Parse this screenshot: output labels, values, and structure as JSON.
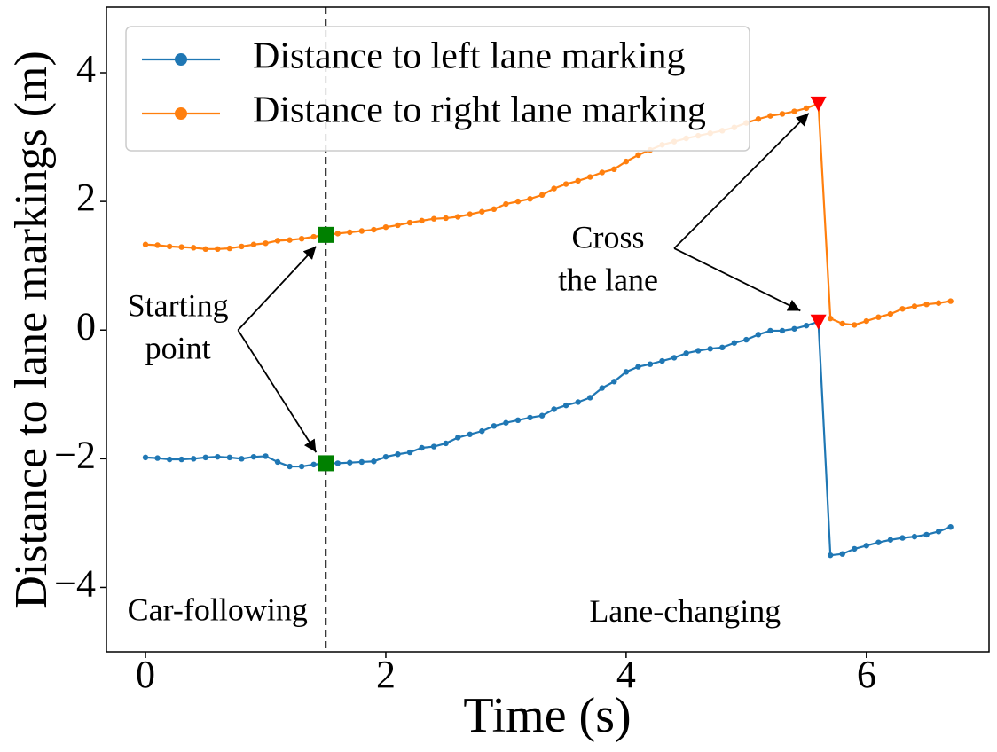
{
  "chart_data": {
    "type": "line",
    "xlabel": "Time (s)",
    "ylabel": "Distance to lane markings (m)",
    "x": [
      0,
      0.1,
      0.2,
      0.3,
      0.4,
      0.5,
      0.6,
      0.7,
      0.8,
      0.9,
      1.0,
      1.1,
      1.2,
      1.3,
      1.4,
      1.5,
      1.6,
      1.7,
      1.8,
      1.9,
      2.0,
      2.1,
      2.2,
      2.3,
      2.4,
      2.5,
      2.6,
      2.7,
      2.8,
      2.9,
      3.0,
      3.1,
      3.2,
      3.3,
      3.4,
      3.5,
      3.6,
      3.7,
      3.8,
      3.9,
      4.0,
      4.1,
      4.2,
      4.3,
      4.4,
      4.5,
      4.6,
      4.7,
      4.8,
      4.9,
      5.0,
      5.1,
      5.2,
      5.3,
      5.4,
      5.5,
      5.6,
      5.7,
      5.8,
      5.9,
      6.0,
      6.1,
      6.2,
      6.3,
      6.4,
      6.5,
      6.6,
      6.7
    ],
    "series": [
      {
        "name": "Distance to left lane marking",
        "color": "#1f77b4",
        "values": [
          -1.98,
          -1.99,
          -2.01,
          -2.01,
          -2.0,
          -1.98,
          -1.97,
          -1.98,
          -2.0,
          -1.97,
          -1.96,
          -2.05,
          -2.12,
          -2.12,
          -2.09,
          -2.07,
          -2.07,
          -2.06,
          -2.05,
          -2.04,
          -1.97,
          -1.93,
          -1.9,
          -1.83,
          -1.81,
          -1.76,
          -1.67,
          -1.62,
          -1.57,
          -1.49,
          -1.44,
          -1.4,
          -1.36,
          -1.33,
          -1.23,
          -1.17,
          -1.12,
          -1.05,
          -0.9,
          -0.8,
          -0.65,
          -0.57,
          -0.53,
          -0.48,
          -0.43,
          -0.36,
          -0.32,
          -0.29,
          -0.27,
          -0.2,
          -0.15,
          -0.07,
          -0.01,
          -0.01,
          0.02,
          0.07,
          0.13,
          -3.5,
          -3.48,
          -3.4,
          -3.35,
          -3.3,
          -3.26,
          -3.23,
          -3.21,
          -3.18,
          -3.13,
          -3.06
        ]
      },
      {
        "name": "Distance to right lane marking",
        "color": "#ff7f0e",
        "values": [
          1.33,
          1.32,
          1.3,
          1.29,
          1.28,
          1.26,
          1.26,
          1.27,
          1.3,
          1.33,
          1.35,
          1.39,
          1.4,
          1.42,
          1.45,
          1.48,
          1.5,
          1.52,
          1.54,
          1.56,
          1.6,
          1.63,
          1.67,
          1.7,
          1.73,
          1.74,
          1.76,
          1.8,
          1.84,
          1.88,
          1.96,
          2.0,
          2.04,
          2.1,
          2.2,
          2.27,
          2.32,
          2.38,
          2.45,
          2.5,
          2.62,
          2.72,
          2.8,
          2.88,
          2.93,
          2.98,
          3.02,
          3.06,
          3.1,
          3.15,
          3.22,
          3.28,
          3.33,
          3.36,
          3.4,
          3.45,
          3.52,
          0.18,
          0.1,
          0.08,
          0.14,
          0.2,
          0.25,
          0.33,
          0.37,
          0.4,
          0.42,
          0.45
        ]
      }
    ],
    "xlim": [
      -0.325,
      7.02
    ],
    "ylim": [
      -5,
      5.02
    ],
    "xticks": [
      0,
      2,
      4,
      6
    ],
    "yticks": [
      {
        "value": -4,
        "label": "−4"
      },
      {
        "value": -2,
        "label": "−2"
      },
      0,
      2,
      4
    ],
    "legend": "upper left",
    "vline": 1.5,
    "markers": [
      {
        "x": 1.5,
        "color": "#008000",
        "shape": "square"
      },
      {
        "x": 5.6,
        "color": "#ff0000",
        "shape": "triangle"
      }
    ],
    "annotations": [
      {
        "text": [
          "Starting",
          "point"
        ],
        "xytext": [
          0.27,
          0.0
        ],
        "start": [
          0.77,
          0.0
        ],
        "targets": [
          [
            1.42,
            1.3
          ],
          [
            1.42,
            -1.9
          ]
        ]
      },
      {
        "text": [
          "Cross",
          "the lane"
        ],
        "xytext": [
          3.85,
          1.06
        ],
        "start": [
          4.4,
          1.27
        ],
        "targets": [
          [
            5.52,
            3.37
          ],
          [
            5.45,
            0.3
          ]
        ]
      }
    ],
    "region_labels": [
      {
        "text": "Car-following",
        "x": 0.6,
        "y": -4.4
      },
      {
        "text": "Lane-changing",
        "x": 4.49,
        "y": -4.42
      }
    ]
  }
}
